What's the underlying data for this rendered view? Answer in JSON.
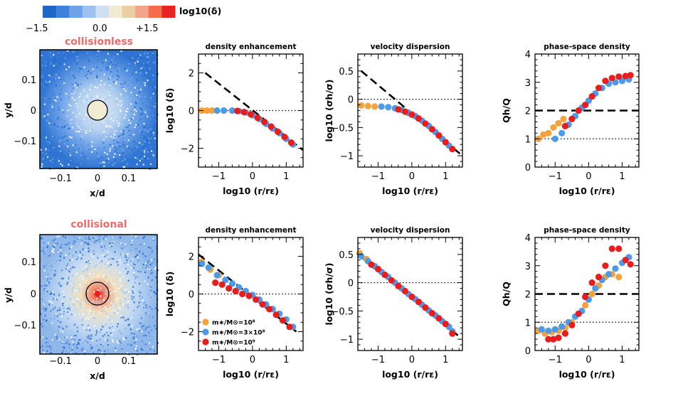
{
  "colorbar": {
    "label": "log10(δ)",
    "ticks": [
      "−1.5",
      "0.0",
      "+1.5"
    ],
    "colors": [
      "#1f66c9",
      "#3f80da",
      "#6ea2e8",
      "#9dc2ef",
      "#cfe0f3",
      "#f2ead2",
      "#eccf9e",
      "#f4a48a",
      "#f46c4a",
      "#e82323"
    ]
  },
  "rows": [
    {
      "label": "collisionless"
    },
    {
      "label": "collisional"
    }
  ],
  "scatter_axes": {
    "xlabel": "x/d",
    "ylabel": "y/d",
    "xticks": [
      "−0.1",
      "0",
      "0.1"
    ],
    "yticks": [
      "0.1",
      "0",
      "−0.1"
    ]
  },
  "legend": [
    {
      "label": "m∗/M⊙=10⁸",
      "color": "#f4a23c"
    },
    {
      "label": "m∗/M⊙=3×10⁸",
      "color": "#4c9bea"
    },
    {
      "label": "m∗/M⊙=10⁹",
      "color": "#e81e1e"
    }
  ],
  "chart_data": [
    {
      "type": "scatter",
      "row": 0,
      "title": "density enhancement",
      "xlabel": "log10 (r/rε)",
      "ylabel": "log10 (δ)",
      "xlim": [
        -1.6,
        1.5
      ],
      "ylim": [
        -3,
        3
      ],
      "xticks": [
        -1,
        0,
        1
      ],
      "yticks": [
        2,
        0,
        -2
      ],
      "dashed": [
        [
          -1.4,
          2.0
        ],
        [
          1.5,
          -2.1
        ]
      ],
      "dotted": 0,
      "series": [
        {
          "name": "m∗/M⊙=10⁸",
          "color": "#f4a23c",
          "x": [
            -1.5,
            -1.35,
            -1.2
          ],
          "y": [
            0.0,
            0.0,
            0.0
          ]
        },
        {
          "name": "m∗/M⊙=3×10⁸",
          "color": "#4c9bea",
          "x": [
            -1.05,
            -0.85,
            -0.6,
            -0.4,
            -0.2,
            0.0,
            0.2,
            0.4,
            0.6,
            0.8,
            1.0,
            1.2
          ],
          "y": [
            0.0,
            0.0,
            0.0,
            -0.03,
            -0.1,
            -0.25,
            -0.45,
            -0.7,
            -0.95,
            -1.2,
            -1.5,
            -1.8
          ]
        },
        {
          "name": "m∗/M⊙=10⁹",
          "color": "#e81e1e",
          "x": [
            -0.45,
            -0.25,
            -0.05,
            0.15,
            0.35,
            0.55,
            0.75,
            0.95,
            1.15
          ],
          "y": [
            -0.02,
            -0.08,
            -0.2,
            -0.38,
            -0.6,
            -0.85,
            -1.12,
            -1.4,
            -1.7
          ]
        }
      ]
    },
    {
      "type": "scatter",
      "row": 0,
      "title": "velocity dispersion",
      "xlabel": "log10 (r/rε)",
      "ylabel": "log10 (σh/σ)",
      "xlim": [
        -1.6,
        1.5
      ],
      "ylim": [
        -1.2,
        0.8
      ],
      "xticks": [
        -1,
        0,
        1
      ],
      "yticks": [
        0.5,
        0,
        -0.5,
        -1
      ],
      "dashed": [
        [
          -1.5,
          0.5
        ],
        [
          1.5,
          -1.0
        ]
      ],
      "dotted": 0,
      "series": [
        {
          "name": "m∗/M⊙=10⁸",
          "color": "#f4a23c",
          "x": [
            -1.5,
            -1.3,
            -1.1
          ],
          "y": [
            -0.11,
            -0.12,
            -0.13
          ]
        },
        {
          "name": "m∗/M⊙=3×10⁸",
          "color": "#4c9bea",
          "x": [
            -0.9,
            -0.7,
            -0.5,
            -0.3,
            -0.1,
            0.1,
            0.3,
            0.5,
            0.7,
            0.9,
            1.1
          ],
          "y": [
            -0.13,
            -0.14,
            -0.16,
            -0.19,
            -0.24,
            -0.3,
            -0.38,
            -0.47,
            -0.58,
            -0.7,
            -0.82
          ]
        },
        {
          "name": "m∗/M⊙=10⁹",
          "color": "#e81e1e",
          "x": [
            -0.4,
            -0.2,
            0.0,
            0.2,
            0.4,
            0.6,
            0.8,
            1.0,
            1.2
          ],
          "y": [
            -0.18,
            -0.22,
            -0.27,
            -0.34,
            -0.43,
            -0.53,
            -0.64,
            -0.76,
            -0.88
          ]
        }
      ]
    },
    {
      "type": "scatter",
      "row": 0,
      "title": "phase-space density",
      "xlabel": "log10 (r/rε)",
      "ylabel": "Qh/Q",
      "xlim": [
        -1.6,
        1.5
      ],
      "ylim": [
        0,
        4
      ],
      "xticks": [
        -1,
        0,
        1
      ],
      "yticks": [
        4,
        3,
        2,
        1,
        0
      ],
      "dashed_h": 2,
      "dotted": 1,
      "series": [
        {
          "name": "m∗/M⊙=10⁸",
          "color": "#f4a23c",
          "x": [
            -1.5,
            -1.35,
            -1.2,
            -1.05,
            -0.9,
            -0.75
          ],
          "y": [
            1.0,
            1.15,
            1.2,
            1.4,
            1.55,
            1.7
          ]
        },
        {
          "name": "m∗/M⊙=3×10⁸",
          "color": "#4c9bea",
          "x": [
            -1.0,
            -0.8,
            -0.6,
            -0.4,
            -0.2,
            0.0,
            0.2,
            0.4,
            0.6,
            0.8,
            1.0,
            1.2
          ],
          "y": [
            1.0,
            1.2,
            1.5,
            1.8,
            2.1,
            2.35,
            2.6,
            2.8,
            2.95,
            3.0,
            3.05,
            3.1
          ]
        },
        {
          "name": "m∗/M⊙=10⁹",
          "color": "#e81e1e",
          "x": [
            -0.7,
            -0.5,
            -0.3,
            -0.1,
            0.1,
            0.3,
            0.5,
            0.7,
            0.9,
            1.1,
            1.25
          ],
          "y": [
            1.45,
            1.7,
            2.0,
            2.2,
            2.5,
            2.8,
            3.05,
            3.15,
            3.2,
            3.22,
            3.25
          ]
        }
      ]
    },
    {
      "type": "scatter",
      "row": 1,
      "title": "density enhancement",
      "xlabel": "log10 (r/rε)",
      "ylabel": "log10 (δ)",
      "xlim": [
        -1.6,
        1.5
      ],
      "ylim": [
        -3,
        3
      ],
      "xticks": [
        -1,
        0,
        1
      ],
      "yticks": [
        2,
        0,
        -2
      ],
      "dashed": [
        [
          -1.6,
          2.1
        ],
        [
          1.3,
          -2.0
        ]
      ],
      "dotted": 0,
      "series": [
        {
          "name": "m∗/M⊙=10⁸",
          "color": "#f4a23c",
          "x": [
            -1.5,
            -1.25,
            -1.0
          ],
          "y": [
            1.7,
            1.3,
            1.0
          ]
        },
        {
          "name": "m∗/M⊙=3×10⁸",
          "color": "#4c9bea",
          "x": [
            -1.5,
            -1.3,
            -1.05,
            -0.8,
            -0.6,
            -0.4,
            -0.2,
            0.0,
            0.2,
            0.4,
            0.6,
            0.8,
            1.0,
            1.2
          ],
          "y": [
            1.6,
            1.4,
            1.0,
            0.75,
            0.55,
            0.35,
            0.15,
            -0.05,
            -0.3,
            -0.55,
            -0.8,
            -1.05,
            -1.35,
            -1.75
          ]
        },
        {
          "name": "m∗/M⊙=10⁹",
          "color": "#e81e1e",
          "x": [
            -1.1,
            -0.9,
            -0.7,
            -0.5,
            -0.3,
            -0.1,
            0.1,
            0.3,
            0.5,
            0.7,
            0.9,
            1.1
          ],
          "y": [
            0.6,
            0.5,
            0.3,
            0.15,
            0.0,
            -0.1,
            -0.3,
            -0.55,
            -0.8,
            -1.1,
            -1.4,
            -1.75
          ]
        }
      ]
    },
    {
      "type": "scatter",
      "row": 1,
      "title": "velocity dispersion",
      "xlabel": "log10 (r/rε)",
      "ylabel": "log10 (σh/σ)",
      "xlim": [
        -1.6,
        1.5
      ],
      "ylim": [
        -1.2,
        0.8
      ],
      "xticks": [
        -1,
        0,
        1
      ],
      "yticks": [
        0.5,
        0,
        -0.5,
        -1
      ],
      "dashed": [
        [
          -1.6,
          0.5
        ],
        [
          1.4,
          -0.95
        ]
      ],
      "dotted": 0,
      "series": [
        {
          "name": "m∗/M⊙=10⁸",
          "color": "#f4a23c",
          "x": [
            -1.55,
            -1.35
          ],
          "y": [
            0.52,
            0.42
          ]
        },
        {
          "name": "m∗/M⊙=3×10⁸",
          "color": "#4c9bea",
          "x": [
            -1.5,
            -1.3,
            -1.1,
            -0.9,
            -0.7,
            -0.5,
            -0.3,
            -0.1,
            0.1,
            0.3,
            0.5,
            0.7,
            0.9,
            1.1,
            1.2
          ],
          "y": [
            0.47,
            0.38,
            0.29,
            0.19,
            0.1,
            0.0,
            -0.1,
            -0.2,
            -0.29,
            -0.39,
            -0.49,
            -0.58,
            -0.68,
            -0.78,
            -0.86
          ]
        },
        {
          "name": "m∗/M⊙=10⁹",
          "color": "#e81e1e",
          "x": [
            -1.2,
            -1.0,
            -0.8,
            -0.6,
            -0.4,
            -0.2,
            0.0,
            0.2,
            0.4,
            0.6,
            0.8,
            1.0,
            1.2
          ],
          "y": [
            0.32,
            0.24,
            0.14,
            0.04,
            -0.06,
            -0.15,
            -0.25,
            -0.34,
            -0.44,
            -0.54,
            -0.63,
            -0.73,
            -0.9
          ]
        }
      ]
    },
    {
      "type": "scatter",
      "row": 1,
      "title": "phase-space density",
      "xlabel": "log10 (r/rε)",
      "ylabel": "Qh/Q",
      "xlim": [
        -1.6,
        1.5
      ],
      "ylim": [
        0,
        4
      ],
      "xticks": [
        -1,
        0,
        1
      ],
      "yticks": [
        4,
        3,
        2,
        1,
        0
      ],
      "dashed_h": 2,
      "dotted": 1,
      "series": [
        {
          "name": "m∗/M⊙=10⁸",
          "color": "#f4a23c",
          "x": [
            -1.5,
            -1.3,
            -1.1,
            -0.9,
            -0.7,
            -0.5,
            -0.3,
            -0.1,
            0.1,
            0.3,
            0.5,
            0.7,
            0.9
          ],
          "y": [
            0.7,
            0.6,
            0.65,
            0.7,
            0.8,
            1.0,
            1.3,
            1.6,
            2.0,
            2.3,
            2.6,
            2.7,
            2.6
          ]
        },
        {
          "name": "m∗/M⊙=3×10⁸",
          "color": "#4c9bea",
          "x": [
            -1.4,
            -1.2,
            -1.0,
            -0.8,
            -0.6,
            -0.4,
            -0.2,
            0.0,
            0.2,
            0.4,
            0.6,
            0.8,
            1.0,
            1.2
          ],
          "y": [
            0.75,
            0.7,
            0.75,
            0.85,
            1.0,
            1.2,
            1.4,
            1.8,
            2.2,
            2.5,
            2.7,
            2.9,
            3.1,
            3.3
          ]
        },
        {
          "name": "m∗/M⊙=10⁹",
          "color": "#e81e1e",
          "x": [
            -1.2,
            -1.05,
            -0.9,
            -0.7,
            -0.5,
            -0.3,
            -0.1,
            0.1,
            0.3,
            0.5,
            0.7,
            0.9,
            1.1,
            1.25
          ],
          "y": [
            0.4,
            0.4,
            0.45,
            0.6,
            0.9,
            1.3,
            1.9,
            2.4,
            2.6,
            3.0,
            3.6,
            3.6,
            3.2,
            3.05
          ]
        }
      ]
    }
  ]
}
